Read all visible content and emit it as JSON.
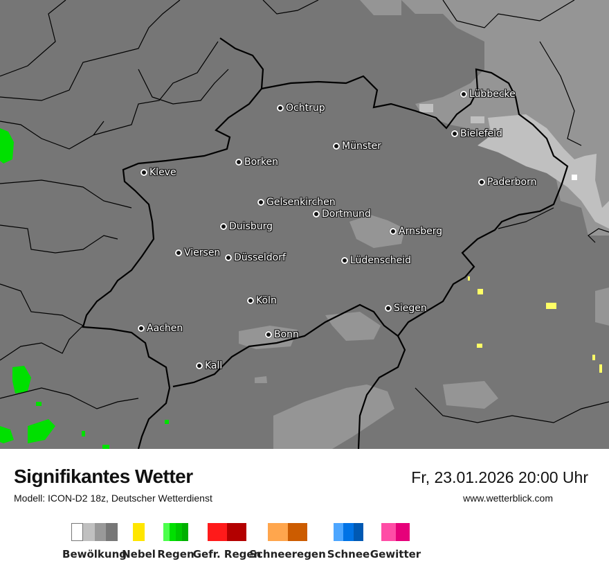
{
  "map": {
    "cities": [
      "Lübbecke",
      "Ochtrup",
      "Bielefeld",
      "Münster",
      "Borken",
      "Kleve",
      "Paderborn",
      "Gelsenkirchen",
      "Dortmund",
      "Duisburg",
      "Arnsberg",
      "Viersen",
      "Düsseldorf",
      "Lüdenscheid",
      "Köln",
      "Siegen",
      "Aachen",
      "Bonn",
      "Kall"
    ],
    "colors": {
      "background": "#767676",
      "cloud_mid": "#959595",
      "cloud_light": "#c0c0c0",
      "fog": "#ffff66",
      "rain": "#00e000",
      "border": "#000000"
    }
  },
  "header": {
    "title": "Signifikantes Wetter",
    "model": "Modell: ICON-D2 18z, Deutscher Wetterdienst",
    "datetime": "Fr, 23.01.2026 20:00 Uhr",
    "website": "www.wetterblick.com"
  },
  "legend": [
    {
      "label": "Bewölkung",
      "colors": [
        "#ffffff",
        "#c0c0c0",
        "#999999",
        "#777777"
      ]
    },
    {
      "label": "Nebel",
      "colors": [
        "#ffe600"
      ]
    },
    {
      "label": "Regen",
      "colors": [
        "#4cff4c",
        "#00e000",
        "#00c800",
        "#00b000"
      ]
    },
    {
      "label": "Gefr. Regen",
      "colors": [
        "#ff1a1a",
        "#b30000"
      ]
    },
    {
      "label": "Schneeregen",
      "colors": [
        "#ffa64d",
        "#cc5c00"
      ]
    },
    {
      "label": "Schnee",
      "colors": [
        "#4da6ff",
        "#0073e6",
        "#0059b3"
      ]
    },
    {
      "label": "Gewitter",
      "colors": [
        "#ff4da6",
        "#e6007a"
      ]
    }
  ]
}
